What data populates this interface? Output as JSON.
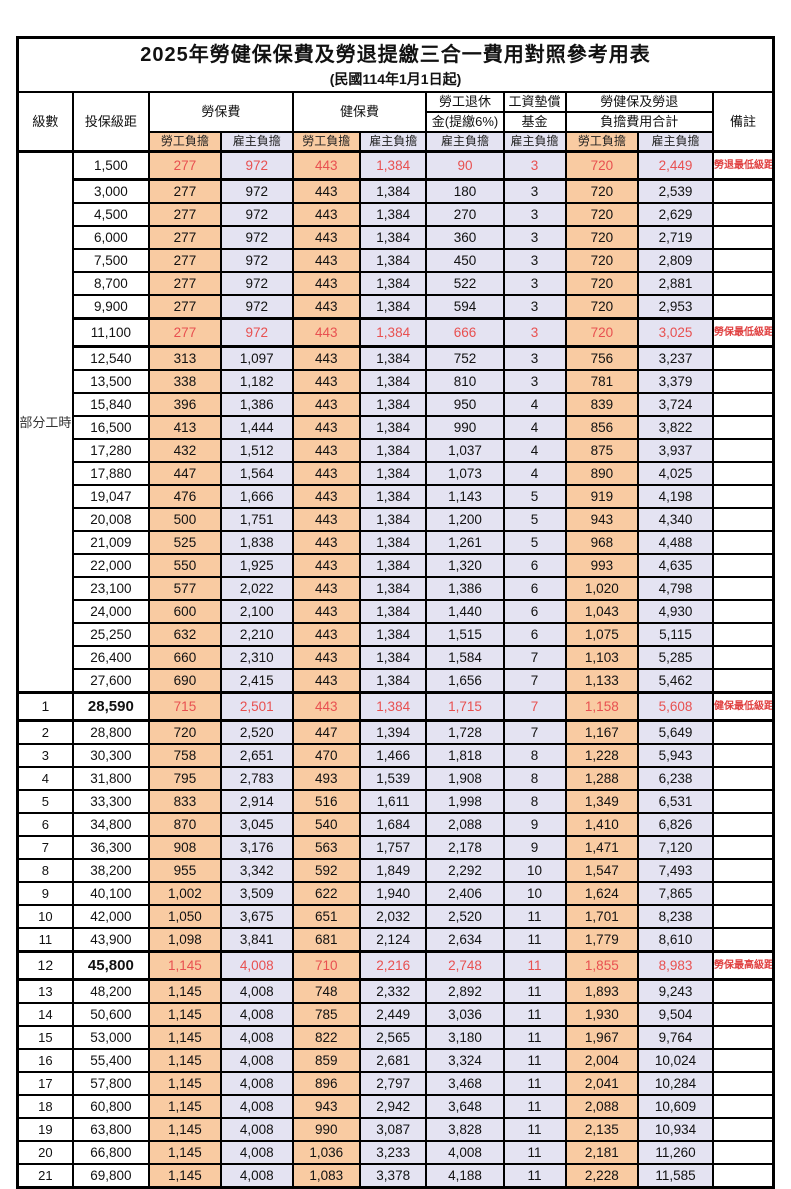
{
  "header": {
    "title": "2025年勞健保保費及勞退提繳三合一費用對照參考用表",
    "subtitle": "(民國114年1月1日起)"
  },
  "columns": {
    "level": "級數",
    "bracket": "投保級距",
    "labor_insurance": "勞保費",
    "health_insurance": "健保費",
    "pension_line1": "勞工退休",
    "pension_line2": "金(提繳6%)",
    "wage_fund_line1": "工資墊償",
    "wage_fund_line2": "基金",
    "total_line1": "勞健保及勞退",
    "total_line2": "負擔費用合計",
    "remark": "備註",
    "employee_label": "勞工負擔",
    "employer_label": "雇主負擔"
  },
  "part_time_label": "部分工時",
  "part_time_row_count": 23,
  "colors": {
    "employee_bg": "#f9cba2",
    "employer_bg": "#e4e3f2",
    "highlight_text": "#e85050",
    "remark_text": "#e04040"
  },
  "rows": [
    {
      "level": "",
      "bracket": "1,500",
      "values": [
        "277",
        "972",
        "443",
        "1,384",
        "90",
        "3",
        "720",
        "2,449"
      ],
      "remark": "勞退最低級距",
      "special": true,
      "bold_bracket": false
    },
    {
      "level": "",
      "bracket": "3,000",
      "values": [
        "277",
        "972",
        "443",
        "1,384",
        "180",
        "3",
        "720",
        "2,539"
      ],
      "remark": "",
      "special": false,
      "bold_bracket": false
    },
    {
      "level": "",
      "bracket": "4,500",
      "values": [
        "277",
        "972",
        "443",
        "1,384",
        "270",
        "3",
        "720",
        "2,629"
      ],
      "remark": "",
      "special": false,
      "bold_bracket": false
    },
    {
      "level": "",
      "bracket": "6,000",
      "values": [
        "277",
        "972",
        "443",
        "1,384",
        "360",
        "3",
        "720",
        "2,719"
      ],
      "remark": "",
      "special": false,
      "bold_bracket": false
    },
    {
      "level": "",
      "bracket": "7,500",
      "values": [
        "277",
        "972",
        "443",
        "1,384",
        "450",
        "3",
        "720",
        "2,809"
      ],
      "remark": "",
      "special": false,
      "bold_bracket": false
    },
    {
      "level": "",
      "bracket": "8,700",
      "values": [
        "277",
        "972",
        "443",
        "1,384",
        "522",
        "3",
        "720",
        "2,881"
      ],
      "remark": "",
      "special": false,
      "bold_bracket": false
    },
    {
      "level": "",
      "bracket": "9,900",
      "values": [
        "277",
        "972",
        "443",
        "1,384",
        "594",
        "3",
        "720",
        "2,953"
      ],
      "remark": "",
      "special": false,
      "bold_bracket": false
    },
    {
      "level": "",
      "bracket": "11,100",
      "values": [
        "277",
        "972",
        "443",
        "1,384",
        "666",
        "3",
        "720",
        "3,025"
      ],
      "remark": "勞保最低級距",
      "special": true,
      "bold_bracket": false
    },
    {
      "level": "",
      "bracket": "12,540",
      "values": [
        "313",
        "1,097",
        "443",
        "1,384",
        "752",
        "3",
        "756",
        "3,237"
      ],
      "remark": "",
      "special": false,
      "bold_bracket": false
    },
    {
      "level": "",
      "bracket": "13,500",
      "values": [
        "338",
        "1,182",
        "443",
        "1,384",
        "810",
        "3",
        "781",
        "3,379"
      ],
      "remark": "",
      "special": false,
      "bold_bracket": false
    },
    {
      "level": "",
      "bracket": "15,840",
      "values": [
        "396",
        "1,386",
        "443",
        "1,384",
        "950",
        "4",
        "839",
        "3,724"
      ],
      "remark": "",
      "special": false,
      "bold_bracket": false
    },
    {
      "level": "",
      "bracket": "16,500",
      "values": [
        "413",
        "1,444",
        "443",
        "1,384",
        "990",
        "4",
        "856",
        "3,822"
      ],
      "remark": "",
      "special": false,
      "bold_bracket": false
    },
    {
      "level": "",
      "bracket": "17,280",
      "values": [
        "432",
        "1,512",
        "443",
        "1,384",
        "1,037",
        "4",
        "875",
        "3,937"
      ],
      "remark": "",
      "special": false,
      "bold_bracket": false
    },
    {
      "level": "",
      "bracket": "17,880",
      "values": [
        "447",
        "1,564",
        "443",
        "1,384",
        "1,073",
        "4",
        "890",
        "4,025"
      ],
      "remark": "",
      "special": false,
      "bold_bracket": false
    },
    {
      "level": "",
      "bracket": "19,047",
      "values": [
        "476",
        "1,666",
        "443",
        "1,384",
        "1,143",
        "5",
        "919",
        "4,198"
      ],
      "remark": "",
      "special": false,
      "bold_bracket": false
    },
    {
      "level": "",
      "bracket": "20,008",
      "values": [
        "500",
        "1,751",
        "443",
        "1,384",
        "1,200",
        "5",
        "943",
        "4,340"
      ],
      "remark": "",
      "special": false,
      "bold_bracket": false
    },
    {
      "level": "",
      "bracket": "21,009",
      "values": [
        "525",
        "1,838",
        "443",
        "1,384",
        "1,261",
        "5",
        "968",
        "4,488"
      ],
      "remark": "",
      "special": false,
      "bold_bracket": false
    },
    {
      "level": "",
      "bracket": "22,000",
      "values": [
        "550",
        "1,925",
        "443",
        "1,384",
        "1,320",
        "6",
        "993",
        "4,635"
      ],
      "remark": "",
      "special": false,
      "bold_bracket": false
    },
    {
      "level": "",
      "bracket": "23,100",
      "values": [
        "577",
        "2,022",
        "443",
        "1,384",
        "1,386",
        "6",
        "1,020",
        "4,798"
      ],
      "remark": "",
      "special": false,
      "bold_bracket": false
    },
    {
      "level": "",
      "bracket": "24,000",
      "values": [
        "600",
        "2,100",
        "443",
        "1,384",
        "1,440",
        "6",
        "1,043",
        "4,930"
      ],
      "remark": "",
      "special": false,
      "bold_bracket": false
    },
    {
      "level": "",
      "bracket": "25,250",
      "values": [
        "632",
        "2,210",
        "443",
        "1,384",
        "1,515",
        "6",
        "1,075",
        "5,115"
      ],
      "remark": "",
      "special": false,
      "bold_bracket": false
    },
    {
      "level": "",
      "bracket": "26,400",
      "values": [
        "660",
        "2,310",
        "443",
        "1,384",
        "1,584",
        "7",
        "1,103",
        "5,285"
      ],
      "remark": "",
      "special": false,
      "bold_bracket": false
    },
    {
      "level": "",
      "bracket": "27,600",
      "values": [
        "690",
        "2,415",
        "443",
        "1,384",
        "1,656",
        "7",
        "1,133",
        "5,462"
      ],
      "remark": "",
      "special": false,
      "bold_bracket": false
    },
    {
      "level": "1",
      "bracket": "28,590",
      "values": [
        "715",
        "2,501",
        "443",
        "1,384",
        "1,715",
        "7",
        "1,158",
        "5,608"
      ],
      "remark": "健保最低級距",
      "special": true,
      "bold_bracket": true
    },
    {
      "level": "2",
      "bracket": "28,800",
      "values": [
        "720",
        "2,520",
        "447",
        "1,394",
        "1,728",
        "7",
        "1,167",
        "5,649"
      ],
      "remark": "",
      "special": false,
      "bold_bracket": false
    },
    {
      "level": "3",
      "bracket": "30,300",
      "values": [
        "758",
        "2,651",
        "470",
        "1,466",
        "1,818",
        "8",
        "1,228",
        "5,943"
      ],
      "remark": "",
      "special": false,
      "bold_bracket": false
    },
    {
      "level": "4",
      "bracket": "31,800",
      "values": [
        "795",
        "2,783",
        "493",
        "1,539",
        "1,908",
        "8",
        "1,288",
        "6,238"
      ],
      "remark": "",
      "special": false,
      "bold_bracket": false
    },
    {
      "level": "5",
      "bracket": "33,300",
      "values": [
        "833",
        "2,914",
        "516",
        "1,611",
        "1,998",
        "8",
        "1,349",
        "6,531"
      ],
      "remark": "",
      "special": false,
      "bold_bracket": false
    },
    {
      "level": "6",
      "bracket": "34,800",
      "values": [
        "870",
        "3,045",
        "540",
        "1,684",
        "2,088",
        "9",
        "1,410",
        "6,826"
      ],
      "remark": "",
      "special": false,
      "bold_bracket": false
    },
    {
      "level": "7",
      "bracket": "36,300",
      "values": [
        "908",
        "3,176",
        "563",
        "1,757",
        "2,178",
        "9",
        "1,471",
        "7,120"
      ],
      "remark": "",
      "special": false,
      "bold_bracket": false
    },
    {
      "level": "8",
      "bracket": "38,200",
      "values": [
        "955",
        "3,342",
        "592",
        "1,849",
        "2,292",
        "10",
        "1,547",
        "7,493"
      ],
      "remark": "",
      "special": false,
      "bold_bracket": false
    },
    {
      "level": "9",
      "bracket": "40,100",
      "values": [
        "1,002",
        "3,509",
        "622",
        "1,940",
        "2,406",
        "10",
        "1,624",
        "7,865"
      ],
      "remark": "",
      "special": false,
      "bold_bracket": false
    },
    {
      "level": "10",
      "bracket": "42,000",
      "values": [
        "1,050",
        "3,675",
        "651",
        "2,032",
        "2,520",
        "11",
        "1,701",
        "8,238"
      ],
      "remark": "",
      "special": false,
      "bold_bracket": false
    },
    {
      "level": "11",
      "bracket": "43,900",
      "values": [
        "1,098",
        "3,841",
        "681",
        "2,124",
        "2,634",
        "11",
        "1,779",
        "8,610"
      ],
      "remark": "",
      "special": false,
      "bold_bracket": false
    },
    {
      "level": "12",
      "bracket": "45,800",
      "values": [
        "1,145",
        "4,008",
        "710",
        "2,216",
        "2,748",
        "11",
        "1,855",
        "8,983"
      ],
      "remark": "勞保最高級距",
      "special": true,
      "bold_bracket": true
    },
    {
      "level": "13",
      "bracket": "48,200",
      "values": [
        "1,145",
        "4,008",
        "748",
        "2,332",
        "2,892",
        "11",
        "1,893",
        "9,243"
      ],
      "remark": "",
      "special": false,
      "bold_bracket": false
    },
    {
      "level": "14",
      "bracket": "50,600",
      "values": [
        "1,145",
        "4,008",
        "785",
        "2,449",
        "3,036",
        "11",
        "1,930",
        "9,504"
      ],
      "remark": "",
      "special": false,
      "bold_bracket": false
    },
    {
      "level": "15",
      "bracket": "53,000",
      "values": [
        "1,145",
        "4,008",
        "822",
        "2,565",
        "3,180",
        "11",
        "1,967",
        "9,764"
      ],
      "remark": "",
      "special": false,
      "bold_bracket": false
    },
    {
      "level": "16",
      "bracket": "55,400",
      "values": [
        "1,145",
        "4,008",
        "859",
        "2,681",
        "3,324",
        "11",
        "2,004",
        "10,024"
      ],
      "remark": "",
      "special": false,
      "bold_bracket": false
    },
    {
      "level": "17",
      "bracket": "57,800",
      "values": [
        "1,145",
        "4,008",
        "896",
        "2,797",
        "3,468",
        "11",
        "2,041",
        "10,284"
      ],
      "remark": "",
      "special": false,
      "bold_bracket": false
    },
    {
      "level": "18",
      "bracket": "60,800",
      "values": [
        "1,145",
        "4,008",
        "943",
        "2,942",
        "3,648",
        "11",
        "2,088",
        "10,609"
      ],
      "remark": "",
      "special": false,
      "bold_bracket": false
    },
    {
      "level": "19",
      "bracket": "63,800",
      "values": [
        "1,145",
        "4,008",
        "990",
        "3,087",
        "3,828",
        "11",
        "2,135",
        "10,934"
      ],
      "remark": "",
      "special": false,
      "bold_bracket": false
    },
    {
      "level": "20",
      "bracket": "66,800",
      "values": [
        "1,145",
        "4,008",
        "1,036",
        "3,233",
        "4,008",
        "11",
        "2,181",
        "11,260"
      ],
      "remark": "",
      "special": false,
      "bold_bracket": false
    },
    {
      "level": "21",
      "bracket": "69,800",
      "values": [
        "1,145",
        "4,008",
        "1,083",
        "3,378",
        "4,188",
        "11",
        "2,228",
        "11,585"
      ],
      "remark": "",
      "special": false,
      "bold_bracket": false
    }
  ]
}
